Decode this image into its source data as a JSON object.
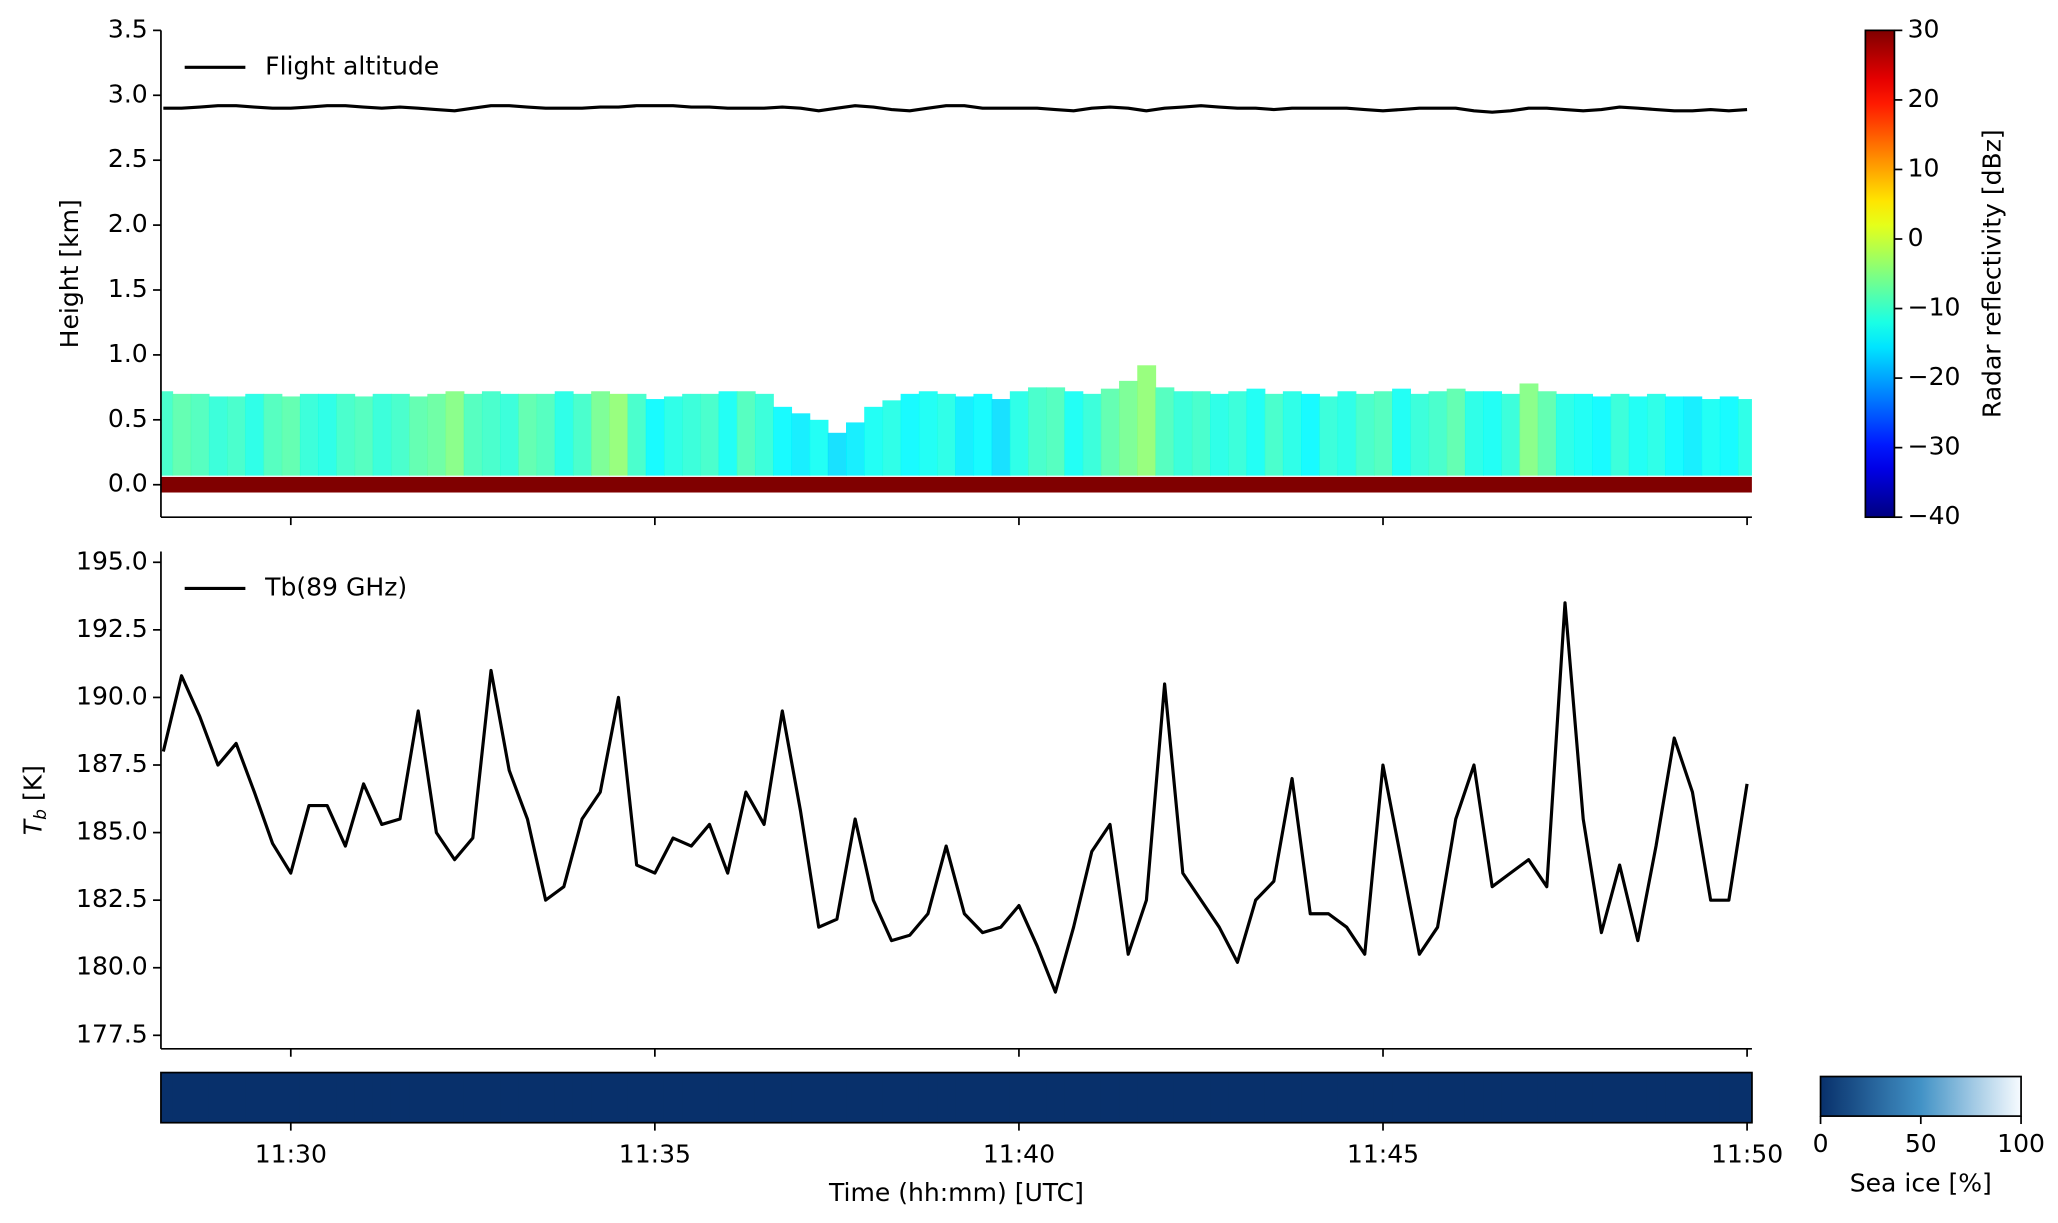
{
  "chart_data": [
    {
      "type": "radar",
      "ylabel": "Height [km]",
      "x": [
        "11:28:15",
        "11:28:30",
        "11:28:45",
        "11:29:00",
        "11:29:15",
        "11:29:30",
        "11:29:45",
        "11:30:00",
        "11:30:15",
        "11:30:30",
        "11:30:45",
        "11:31:00",
        "11:31:15",
        "11:31:30",
        "11:31:45",
        "11:32:00",
        "11:32:15",
        "11:32:30",
        "11:32:45",
        "11:33:00",
        "11:33:15",
        "11:33:30",
        "11:33:45",
        "11:34:00",
        "11:34:15",
        "11:34:30",
        "11:34:45",
        "11:35:00",
        "11:35:15",
        "11:35:30",
        "11:35:45",
        "11:36:00",
        "11:36:15",
        "11:36:30",
        "11:36:45",
        "11:37:00",
        "11:37:15",
        "11:37:30",
        "11:37:45",
        "11:38:00",
        "11:38:15",
        "11:38:30",
        "11:38:45",
        "11:39:00",
        "11:39:15",
        "11:39:30",
        "11:39:45",
        "11:40:00",
        "11:40:15",
        "11:40:30",
        "11:40:45",
        "11:41:00",
        "11:41:15",
        "11:41:30",
        "11:41:45",
        "11:42:00",
        "11:42:15",
        "11:42:30",
        "11:42:45",
        "11:43:00",
        "11:43:15",
        "11:43:30",
        "11:43:45",
        "11:44:00",
        "11:44:15",
        "11:44:30",
        "11:44:45",
        "11:45:00",
        "11:45:15",
        "11:45:30",
        "11:45:45",
        "11:46:00",
        "11:46:15",
        "11:46:30",
        "11:46:45",
        "11:47:00",
        "11:47:15",
        "11:47:30",
        "11:47:45",
        "11:48:00",
        "11:48:15",
        "11:48:30",
        "11:48:45",
        "11:49:00",
        "11:49:15",
        "11:49:30",
        "11:49:45",
        "11:50:00"
      ],
      "xlim": [
        "11:28:13",
        "11:50:04"
      ],
      "xticks": [
        "11:30",
        "11:35",
        "11:40",
        "11:45",
        "11:50"
      ],
      "ylim": [
        -0.25,
        3.5
      ],
      "yticks": [
        {
          "value": 0,
          "label": "0.0"
        },
        0.5,
        {
          "value": 1,
          "label": "1.0"
        },
        1.5,
        {
          "value": 2,
          "label": "2.0"
        },
        2.5,
        {
          "value": 3,
          "label": "3.0"
        },
        3.5
      ],
      "series": [
        {
          "name": "Flight altitude",
          "color": "#000000",
          "values": [
            2.9,
            2.9,
            2.91,
            2.92,
            2.92,
            2.91,
            2.9,
            2.9,
            2.91,
            2.92,
            2.92,
            2.91,
            2.9,
            2.91,
            2.9,
            2.89,
            2.88,
            2.9,
            2.92,
            2.92,
            2.91,
            2.9,
            2.9,
            2.9,
            2.91,
            2.91,
            2.92,
            2.92,
            2.92,
            2.91,
            2.91,
            2.9,
            2.9,
            2.9,
            2.91,
            2.9,
            2.88,
            2.9,
            2.92,
            2.91,
            2.89,
            2.88,
            2.9,
            2.92,
            2.92,
            2.9,
            2.9,
            2.9,
            2.9,
            2.89,
            2.88,
            2.9,
            2.91,
            2.9,
            2.88,
            2.9,
            2.91,
            2.92,
            2.91,
            2.9,
            2.9,
            2.89,
            2.9,
            2.9,
            2.9,
            2.9,
            2.89,
            2.88,
            2.89,
            2.9,
            2.9,
            2.9,
            2.88,
            2.87,
            2.88,
            2.9,
            2.9,
            2.89,
            2.88,
            2.89,
            2.91,
            2.9,
            2.89,
            2.88,
            2.88,
            2.89,
            2.88,
            2.89
          ]
        }
      ],
      "legend": "upper left",
      "radar": {
        "cloud_top": [
          0.72,
          0.7,
          0.7,
          0.68,
          0.68,
          0.7,
          0.7,
          0.68,
          0.7,
          0.7,
          0.7,
          0.68,
          0.7,
          0.7,
          0.68,
          0.7,
          0.72,
          0.7,
          0.72,
          0.7,
          0.7,
          0.7,
          0.72,
          0.7,
          0.72,
          0.7,
          0.7,
          0.66,
          0.68,
          0.7,
          0.7,
          0.72,
          0.72,
          0.7,
          0.6,
          0.55,
          0.5,
          0.4,
          0.48,
          0.6,
          0.65,
          0.7,
          0.72,
          0.7,
          0.68,
          0.7,
          0.66,
          0.72,
          0.75,
          0.75,
          0.72,
          0.7,
          0.74,
          0.8,
          0.92,
          0.75,
          0.72,
          0.72,
          0.7,
          0.72,
          0.74,
          0.7,
          0.72,
          0.7,
          0.68,
          0.72,
          0.7,
          0.72,
          0.74,
          0.7,
          0.72,
          0.74,
          0.72,
          0.72,
          0.7,
          0.78,
          0.72,
          0.7,
          0.7,
          0.68,
          0.7,
          0.68,
          0.7,
          0.68,
          0.68,
          0.66,
          0.68,
          0.66
        ],
        "reflectivity": [
          -10,
          -8,
          -9,
          -11,
          -10,
          -12,
          -9,
          -8,
          -11,
          -12,
          -10,
          -9,
          -11,
          -10,
          -8,
          -7,
          -5,
          -9,
          -10,
          -11,
          -8,
          -9,
          -12,
          -10,
          -6,
          -4,
          -10,
          -14,
          -12,
          -11,
          -10,
          -13,
          -9,
          -11,
          -14,
          -15,
          -13,
          -16,
          -15,
          -13,
          -12,
          -14,
          -13,
          -12,
          -15,
          -14,
          -16,
          -12,
          -10,
          -9,
          -13,
          -11,
          -8,
          -6,
          -4,
          -9,
          -11,
          -10,
          -12,
          -11,
          -13,
          -10,
          -12,
          -14,
          -11,
          -12,
          -10,
          -9,
          -13,
          -11,
          -10,
          -8,
          -12,
          -13,
          -11,
          -5,
          -8,
          -12,
          -13,
          -14,
          -11,
          -13,
          -12,
          -14,
          -15,
          -13,
          -14,
          -12
        ],
        "surface_reflectivity": 30
      },
      "colorbar": {
        "label": "Radar reflectivity [dBz]",
        "colormap": "jet",
        "lim": [
          -40,
          30
        ],
        "ticks": [
          30,
          20,
          10,
          0,
          {
            "value": -10,
            "label": "−10"
          },
          {
            "value": -20,
            "label": "−20"
          },
          {
            "value": -30,
            "label": "−30"
          },
          {
            "value": -40,
            "label": "−40"
          }
        ]
      }
    },
    {
      "type": "line",
      "ylabel": {
        "symbol": "T",
        "subscript": "b",
        "unit": " [K]"
      },
      "x": [
        "11:28:15",
        "11:28:30",
        "11:28:45",
        "11:29:00",
        "11:29:15",
        "11:29:30",
        "11:29:45",
        "11:30:00",
        "11:30:15",
        "11:30:30",
        "11:30:45",
        "11:31:00",
        "11:31:15",
        "11:31:30",
        "11:31:45",
        "11:32:00",
        "11:32:15",
        "11:32:30",
        "11:32:45",
        "11:33:00",
        "11:33:15",
        "11:33:30",
        "11:33:45",
        "11:34:00",
        "11:34:15",
        "11:34:30",
        "11:34:45",
        "11:35:00",
        "11:35:15",
        "11:35:30",
        "11:35:45",
        "11:36:00",
        "11:36:15",
        "11:36:30",
        "11:36:45",
        "11:37:00",
        "11:37:15",
        "11:37:30",
        "11:37:45",
        "11:38:00",
        "11:38:15",
        "11:38:30",
        "11:38:45",
        "11:39:00",
        "11:39:15",
        "11:39:30",
        "11:39:45",
        "11:40:00",
        "11:40:15",
        "11:40:30",
        "11:40:45",
        "11:41:00",
        "11:41:15",
        "11:41:30",
        "11:41:45",
        "11:42:00",
        "11:42:15",
        "11:42:30",
        "11:42:45",
        "11:43:00",
        "11:43:15",
        "11:43:30",
        "11:43:45",
        "11:44:00",
        "11:44:15",
        "11:44:30",
        "11:44:45",
        "11:45:00",
        "11:45:15",
        "11:45:30",
        "11:45:45",
        "11:46:00",
        "11:46:15",
        "11:46:30",
        "11:46:45",
        "11:47:00",
        "11:47:15",
        "11:47:30",
        "11:47:45",
        "11:48:00",
        "11:48:15",
        "11:48:30",
        "11:48:45",
        "11:49:00",
        "11:49:15",
        "11:49:30",
        "11:49:45",
        "11:50:00"
      ],
      "xlim": [
        "11:28:13",
        "11:50:04"
      ],
      "xticks": [
        "11:30",
        "11:35",
        "11:40",
        "11:45",
        "11:50"
      ],
      "ylim": [
        177.0,
        195.4
      ],
      "yticks": [
        177.5,
        {
          "value": 180,
          "label": "180.0"
        },
        182.5,
        {
          "value": 185,
          "label": "185.0"
        },
        187.5,
        {
          "value": 190,
          "label": "190.0"
        },
        192.5,
        {
          "value": 195,
          "label": "195.0"
        }
      ],
      "series": [
        {
          "name": "Tb(89 GHz)",
          "color": "#000000",
          "values": [
            188,
            190.8,
            189.3,
            187.5,
            188.3,
            186.5,
            184.6,
            183.5,
            186,
            186,
            184.5,
            186.8,
            185.3,
            185.5,
            189.5,
            185,
            184,
            184.8,
            191,
            187.3,
            185.5,
            182.5,
            183,
            185.5,
            186.5,
            190,
            183.8,
            183.5,
            184.8,
            184.5,
            185.3,
            183.5,
            186.5,
            185.3,
            189.5,
            185.8,
            181.5,
            181.8,
            185.5,
            182.5,
            181,
            181.2,
            182,
            184.5,
            182,
            181.3,
            181.5,
            182.3,
            180.8,
            179.1,
            181.5,
            184.3,
            185.3,
            180.5,
            182.5,
            190.5,
            183.5,
            182.5,
            181.5,
            180.2,
            182.5,
            183.2,
            187,
            182,
            182,
            181.5,
            180.5,
            187.5,
            184,
            180.5,
            181.5,
            185.5,
            187.5,
            183,
            183.5,
            184,
            183,
            193.5,
            185.5,
            181.3,
            183.8,
            181,
            184.5,
            188.5,
            186.5,
            182.5,
            182.5,
            186.8
          ]
        }
      ],
      "legend": "upper left"
    },
    {
      "type": "strip",
      "xlabel": "Time (hh:mm) [UTC]",
      "x": [
        "11:28:15",
        "11:28:30",
        "11:28:45",
        "11:29:00",
        "11:29:15",
        "11:29:30",
        "11:29:45",
        "11:30:00",
        "11:30:15",
        "11:30:30",
        "11:30:45",
        "11:31:00",
        "11:31:15",
        "11:31:30",
        "11:31:45",
        "11:32:00",
        "11:32:15",
        "11:32:30",
        "11:32:45",
        "11:33:00",
        "11:33:15",
        "11:33:30",
        "11:33:45",
        "11:34:00",
        "11:34:15",
        "11:34:30",
        "11:34:45",
        "11:35:00",
        "11:35:15",
        "11:35:30",
        "11:35:45",
        "11:36:00",
        "11:36:15",
        "11:36:30",
        "11:36:45",
        "11:37:00",
        "11:37:15",
        "11:37:30",
        "11:37:45",
        "11:38:00",
        "11:38:15",
        "11:38:30",
        "11:38:45",
        "11:39:00",
        "11:39:15",
        "11:39:30",
        "11:39:45",
        "11:40:00",
        "11:40:15",
        "11:40:30",
        "11:40:45",
        "11:41:00",
        "11:41:15",
        "11:41:30",
        "11:41:45",
        "11:42:00",
        "11:42:15",
        "11:42:30",
        "11:42:45",
        "11:43:00",
        "11:43:15",
        "11:43:30",
        "11:43:45",
        "11:44:00",
        "11:44:15",
        "11:44:30",
        "11:44:45",
        "11:45:00",
        "11:45:15",
        "11:45:30",
        "11:45:45",
        "11:46:00",
        "11:46:15",
        "11:46:30",
        "11:46:45",
        "11:47:00",
        "11:47:15",
        "11:47:30",
        "11:47:45",
        "11:48:00",
        "11:48:15",
        "11:48:30",
        "11:48:45",
        "11:49:00",
        "11:49:15",
        "11:49:30",
        "11:49:45",
        "11:50:00"
      ],
      "xlim": [
        "11:28:13",
        "11:50:04"
      ],
      "xticks": [
        "11:30",
        "11:35",
        "11:40",
        "11:45",
        "11:50"
      ],
      "values": [
        0,
        0,
        0,
        0,
        0,
        0,
        0,
        0,
        0,
        0,
        0,
        0,
        0,
        0,
        0,
        0,
        0,
        0,
        0,
        0,
        0,
        0,
        0,
        0,
        0,
        0,
        0,
        0,
        0,
        0,
        0,
        0,
        0,
        0,
        0,
        0,
        0,
        0,
        0,
        0,
        0,
        0,
        0,
        0,
        0,
        0,
        0,
        0,
        0,
        0,
        0,
        0,
        0,
        0,
        0,
        0,
        0,
        0,
        0,
        0,
        0,
        0,
        0,
        0,
        0,
        0,
        0,
        0,
        0,
        0,
        0,
        0,
        0,
        0,
        0,
        0,
        0,
        0,
        0,
        0,
        0,
        0,
        0,
        0,
        0,
        0,
        0,
        0
      ],
      "colorbar": {
        "label": "Sea ice [%]",
        "colormap": "Blues_r",
        "lim": [
          0,
          100
        ],
        "ticks": [
          0,
          50,
          100
        ]
      }
    }
  ]
}
